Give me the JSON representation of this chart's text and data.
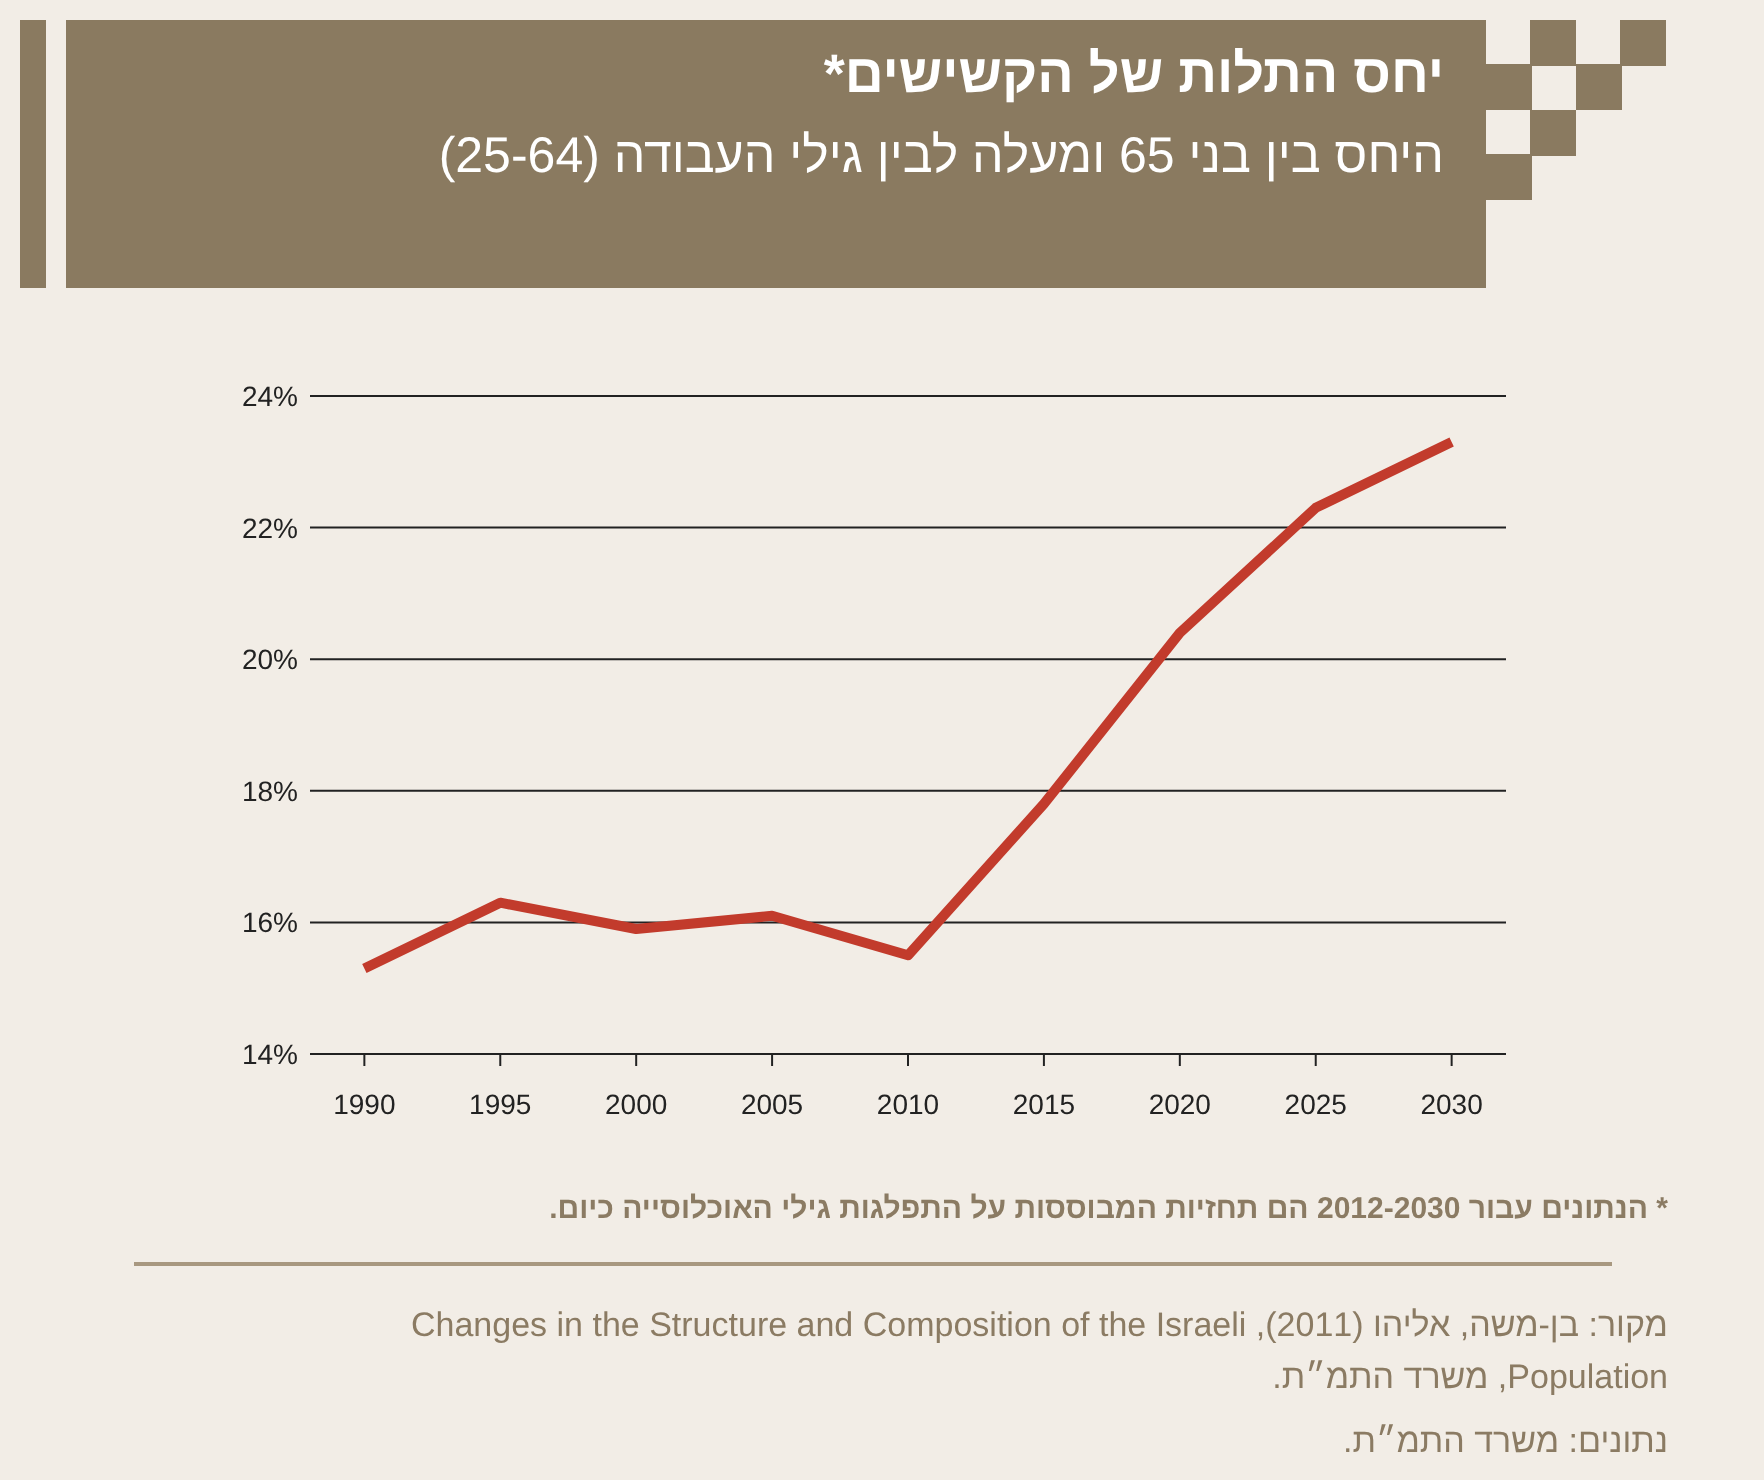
{
  "chart_data": {
    "type": "line",
    "title": "יחס התלות של הקשישים*",
    "subtitle": "היחס בין בני 65 ומעלה לבין גילי העבודה (25-64)",
    "x": [
      1990,
      1995,
      2000,
      2005,
      2010,
      2015,
      2020,
      2025,
      2030
    ],
    "series": [
      {
        "color": "#c23b2c",
        "values": [
          15.3,
          16.3,
          15.9,
          16.1,
          15.5,
          17.8,
          20.4,
          22.3,
          23.3
        ]
      }
    ],
    "xlim": [
      1988,
      2032
    ],
    "xticks": [
      1990,
      1995,
      2000,
      2005,
      2010,
      2015,
      2020,
      2025,
      2030
    ],
    "ylim": [
      14,
      24
    ],
    "yticks": [
      {
        "value": 14,
        "label": "14%"
      },
      {
        "value": 16,
        "label": "16%"
      },
      {
        "value": 18,
        "label": "18%"
      },
      {
        "value": 20,
        "label": "20%"
      },
      {
        "value": 22,
        "label": "22%"
      },
      {
        "value": 24,
        "label": "24%"
      }
    ],
    "grid": "y",
    "marker": "none",
    "line_style": "solid",
    "annotations": [
      "* הנתונים עבור 2012-2030 הם תחזיות המבוססות על התפלגות גילי האוכלוסייה כיום.",
      "מקור: בן-משה, אליהו (2011), Changes in the Structure and Composition of the Israeli Population, משרד התמ״ת.",
      "נתונים: משרד התמ״ת."
    ]
  }
}
